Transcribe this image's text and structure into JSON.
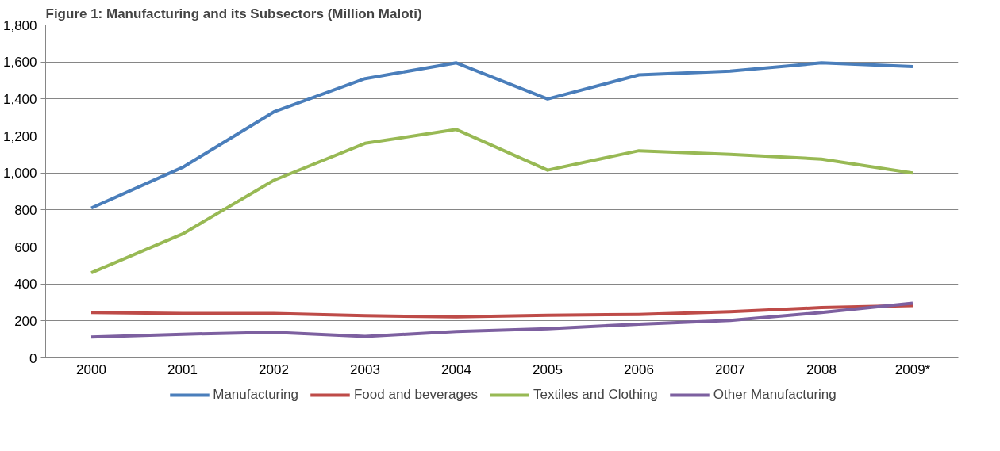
{
  "chart_data": {
    "type": "line",
    "title": "Figure 1: Manufacturing and its Subsectors (Million Maloti)",
    "categories": [
      "2000",
      "2001",
      "2002",
      "2003",
      "2004",
      "2005",
      "2006",
      "2007",
      "2008",
      "2009*"
    ],
    "series": [
      {
        "name": "Manufacturing",
        "color": "#4a7ebb",
        "values": [
          810,
          1030,
          1330,
          1510,
          1595,
          1400,
          1530,
          1550,
          1595,
          1575
        ]
      },
      {
        "name": "Food and beverages",
        "color": "#be4b48",
        "values": [
          245,
          240,
          240,
          228,
          222,
          230,
          235,
          250,
          272,
          283
        ]
      },
      {
        "name": "Textiles and Clothing",
        "color": "#98b954",
        "values": [
          460,
          670,
          960,
          1160,
          1235,
          1015,
          1120,
          1100,
          1075,
          1000
        ]
      },
      {
        "name": "Other Manufacturing",
        "color": "#7d60a0",
        "values": [
          112,
          128,
          138,
          116,
          142,
          158,
          182,
          202,
          245,
          296
        ]
      }
    ],
    "ylim": [
      0,
      1800
    ],
    "yticks": [
      0,
      200,
      400,
      600,
      800,
      {
        "value": 1000,
        "label": "1,000"
      },
      {
        "value": 1200,
        "label": "1,200"
      },
      {
        "value": 1400,
        "label": "1,400"
      },
      {
        "value": 1600,
        "label": "1,600"
      },
      {
        "value": 1800,
        "label": "1,800"
      }
    ],
    "grid": "y",
    "legend": "bottom",
    "marker": "none",
    "line_style": "solid"
  }
}
